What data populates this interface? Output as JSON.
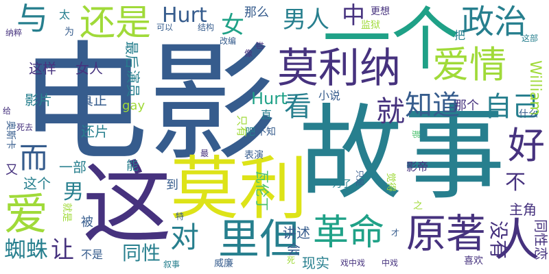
{
  "palette": {
    "dark_purple": "#46327e",
    "blue": "#365c8d",
    "steel_blue": "#277f8e",
    "teal": "#1fa187",
    "green": "#4ac16d",
    "lime": "#a0da39",
    "yellow": "#dde318",
    "background": "#ffffff"
  },
  "words": [
    {
      "text": "电影"
    },
    {
      "text": "故事"
    },
    {
      "text": "一个"
    },
    {
      "text": "这"
    },
    {
      "text": "莫利"
    },
    {
      "text": "莫利纳"
    },
    {
      "text": "爱情"
    },
    {
      "text": "原著"
    },
    {
      "text": "革命"
    },
    {
      "text": "爱"
    },
    {
      "text": "里"
    },
    {
      "text": "但"
    },
    {
      "text": "人"
    },
    {
      "text": "还是"
    },
    {
      "text": "政治"
    },
    {
      "text": "与"
    },
    {
      "text": "中"
    },
    {
      "text": "好"
    },
    {
      "text": "看"
    },
    {
      "text": "就"
    },
    {
      "text": "自己"
    },
    {
      "text": "知道"
    },
    {
      "text": "而"
    },
    {
      "text": "对"
    },
    {
      "text": "男人"
    },
    {
      "text": "女"
    },
    {
      "text": "Hurt"
    },
    {
      "text": "蜘蛛"
    },
    {
      "text": "让"
    },
    {
      "text": "同性"
    },
    {
      "text": "男"
    },
    {
      "text": "不"
    },
    {
      "text": "没有"
    },
    {
      "text": "William"
    },
    {
      "text": "瓦伦丁"
    },
    {
      "text": "这样"
    },
    {
      "text": "女人"
    },
    {
      "text": "最后"
    },
    {
      "text": "影片"
    },
    {
      "text": "真正"
    },
    {
      "text": "gay"
    },
    {
      "text": "那么"
    },
    {
      "text": "还片"
    },
    {
      "text": "一部"
    },
    {
      "text": "这个"
    },
    {
      "text": "主角"
    },
    {
      "text": "同性恋"
    },
    {
      "text": "讲述"
    },
    {
      "text": "会"
    },
    {
      "text": "现实"
    },
    {
      "text": "不是"
    },
    {
      "text": "喜欢"
    },
    {
      "text": "那个"
    },
    {
      "text": "只有"
    },
    {
      "text": "小说"
    },
    {
      "text": "演员"
    },
    {
      "text": "太"
    },
    {
      "text": "为"
    },
    {
      "text": "可以"
    },
    {
      "text": "结构"
    },
    {
      "text": "改编"
    },
    {
      "text": "更想"
    },
    {
      "text": "把"
    },
    {
      "text": "监狱"
    },
    {
      "text": "这部"
    },
    {
      "text": "纳粹"
    },
    {
      "text": "像"
    },
    {
      "text": "却"
    },
    {
      "text": "直"
    },
    {
      "text": "吧"
    },
    {
      "text": "不知"
    },
    {
      "text": "表演"
    },
    {
      "text": "能"
    },
    {
      "text": "到"
    },
    {
      "text": "被"
    },
    {
      "text": "就是"
    },
    {
      "text": "威廉"
    },
    {
      "text": "叙事"
    },
    {
      "text": "死"
    },
    {
      "text": "戏中戏"
    },
    {
      "text": "中戏"
    },
    {
      "text": "才"
    },
    {
      "text": "之"
    },
    {
      "text": "为了"
    },
    {
      "text": "只是"
    },
    {
      "text": "觉得"
    },
    {
      "text": "影帝"
    },
    {
      "text": "什么"
    },
    {
      "text": "那"
    },
    {
      "text": "死去"
    },
    {
      "text": "给"
    },
    {
      "text": "又"
    },
    {
      "text": "奥斯卡"
    },
    {
      "text": "最"
    },
    {
      "text": "特"
    }
  ]
}
